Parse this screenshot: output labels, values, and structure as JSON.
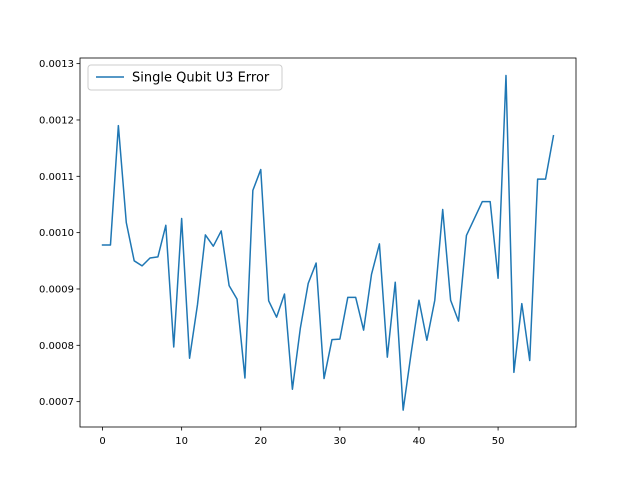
{
  "chart_data": {
    "type": "line",
    "title": "",
    "xlabel": "",
    "ylabel": "",
    "xlim": [
      -2.85,
      59.85
    ],
    "ylim": [
      0.000655,
      0.00131
    ],
    "x_ticks": [
      0,
      10,
      20,
      30,
      40,
      50
    ],
    "y_ticks": [
      0.0007,
      0.0008,
      0.0009,
      0.001,
      0.0011,
      0.0012,
      0.0013
    ],
    "x_tick_labels": [
      "0",
      "10",
      "20",
      "30",
      "40",
      "50"
    ],
    "y_tick_labels": [
      "0.0007",
      "0.0008",
      "0.0009",
      "0.0010",
      "0.0011",
      "0.0012",
      "0.0013"
    ],
    "grid": false,
    "legend_position": "upper-left",
    "series": [
      {
        "name": "Single Qubit U3 Error",
        "color": "#1f77b4",
        "x": [
          0,
          1,
          2,
          3,
          4,
          5,
          6,
          7,
          8,
          9,
          10,
          11,
          12,
          13,
          14,
          15,
          16,
          17,
          18,
          19,
          20,
          21,
          22,
          23,
          24,
          25,
          26,
          27,
          28,
          29,
          30,
          31,
          32,
          33,
          34,
          35,
          36,
          37,
          38,
          39,
          40,
          41,
          42,
          43,
          44,
          45,
          46,
          47,
          48,
          49,
          50,
          51,
          52,
          53,
          54,
          55,
          56,
          57
        ],
        "y": [
          0.000978,
          0.000978,
          0.00119,
          0.001018,
          0.00095,
          0.000941,
          0.000955,
          0.000957,
          0.001013,
          0.000797,
          0.001025,
          0.000777,
          0.000872,
          0.000996,
          0.000976,
          0.001003,
          0.000906,
          0.000882,
          0.000742,
          0.001075,
          0.001112,
          0.000879,
          0.00085,
          0.000891,
          0.000722,
          0.00083,
          0.00091,
          0.000946,
          0.000741,
          0.00081,
          0.000811,
          0.000885,
          0.000885,
          0.000827,
          0.000926,
          0.00098,
          0.000779,
          0.000912,
          0.000685,
          0.000785,
          0.00088,
          0.000809,
          0.00088,
          0.001041,
          0.00088,
          0.000843,
          0.000995,
          0.001025,
          0.001055,
          0.001055,
          0.000919,
          0.001279,
          0.000752,
          0.000874,
          0.000773,
          0.001095,
          0.001095,
          0.001172
        ]
      }
    ]
  }
}
